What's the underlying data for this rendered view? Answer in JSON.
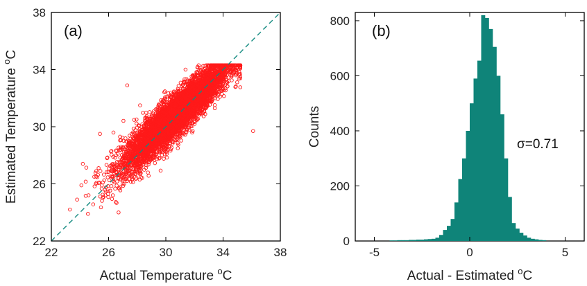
{
  "chart_data": [
    {
      "type": "scatter",
      "panel_label": "(a)",
      "xlabel": "Actual Temperature",
      "xlabel_unit_sup": "o",
      "xlabel_unit": "C",
      "ylabel": "Estimated Temperature",
      "ylabel_unit_sup": "o",
      "ylabel_unit": "C",
      "xlim": [
        22,
        38
      ],
      "ylim": [
        22,
        38
      ],
      "xticks": [
        22,
        26,
        30,
        34,
        38
      ],
      "yticks": [
        22,
        26,
        30,
        34,
        38
      ],
      "reference_line": {
        "style": "dashed",
        "from": [
          22,
          22
        ],
        "to": [
          38,
          38
        ]
      },
      "marker": "open-circle",
      "point_count_approx": 6000,
      "point_cloud": {
        "center": [
          30.7,
          30.8
        ],
        "x_range_observed": [
          23.2,
          36.1
        ],
        "y_range_observed": [
          23.9,
          34.3
        ],
        "correlation_approx": 0.9
      },
      "sample_points": [
        [
          23.3,
          24.2
        ],
        [
          24.1,
          25.9
        ],
        [
          24.6,
          25.2
        ],
        [
          25.0,
          26.5
        ],
        [
          25.3,
          27.1
        ],
        [
          25.6,
          26.1
        ],
        [
          25.9,
          27.8
        ],
        [
          26.2,
          28.3
        ],
        [
          26.5,
          27.0
        ],
        [
          26.8,
          29.3
        ],
        [
          27.1,
          28.0
        ],
        [
          27.4,
          29.0
        ],
        [
          27.7,
          28.5
        ],
        [
          28.0,
          29.6
        ],
        [
          28.3,
          28.9
        ],
        [
          28.6,
          30.2
        ],
        [
          28.9,
          29.4
        ],
        [
          29.2,
          30.6
        ],
        [
          29.5,
          30.0
        ],
        [
          29.8,
          31.0
        ],
        [
          30.1,
          30.4
        ],
        [
          30.4,
          31.3
        ],
        [
          30.7,
          30.8
        ],
        [
          31.0,
          31.7
        ],
        [
          31.3,
          31.1
        ],
        [
          31.6,
          32.0
        ],
        [
          31.9,
          31.5
        ],
        [
          32.2,
          32.5
        ],
        [
          32.5,
          32.0
        ],
        [
          32.8,
          32.9
        ],
        [
          33.1,
          32.3
        ],
        [
          33.4,
          33.2
        ],
        [
          33.7,
          32.8
        ],
        [
          34.0,
          33.6
        ],
        [
          34.3,
          33.1
        ],
        [
          34.6,
          34.0
        ],
        [
          34.9,
          33.6
        ],
        [
          36.1,
          29.7
        ],
        [
          25.4,
          29.5
        ],
        [
          27.3,
          32.9
        ],
        [
          24.2,
          27.4
        ],
        [
          26.7,
          24.0
        ],
        [
          23.8,
          24.9
        ],
        [
          33.3,
          34.2
        ],
        [
          28.2,
          31.5
        ]
      ],
      "color": "#ff1a1a",
      "line_color": "#138a80"
    },
    {
      "type": "bar",
      "subtype": "histogram",
      "panel_label": "(b)",
      "xlabel": "Actual - Estimated",
      "xlabel_unit_sup": "o",
      "xlabel_unit": "C",
      "ylabel": "Counts",
      "annotation": "σ=0.71",
      "xlim": [
        -6,
        6
      ],
      "ylim": [
        0,
        830
      ],
      "xticks": [
        -5,
        0,
        5
      ],
      "yticks": [
        0,
        200,
        400,
        600,
        800
      ],
      "bin_width": 0.2,
      "bin_start": -4.2,
      "values": [
        2,
        2,
        3,
        3,
        3,
        4,
        4,
        5,
        5,
        6,
        7,
        8,
        12,
        22,
        40,
        55,
        80,
        140,
        225,
        300,
        400,
        500,
        590,
        655,
        820,
        810,
        770,
        705,
        600,
        460,
        300,
        160,
        65,
        45,
        30,
        20,
        12,
        8,
        6,
        4,
        3
      ],
      "color": "#0f8479"
    }
  ]
}
